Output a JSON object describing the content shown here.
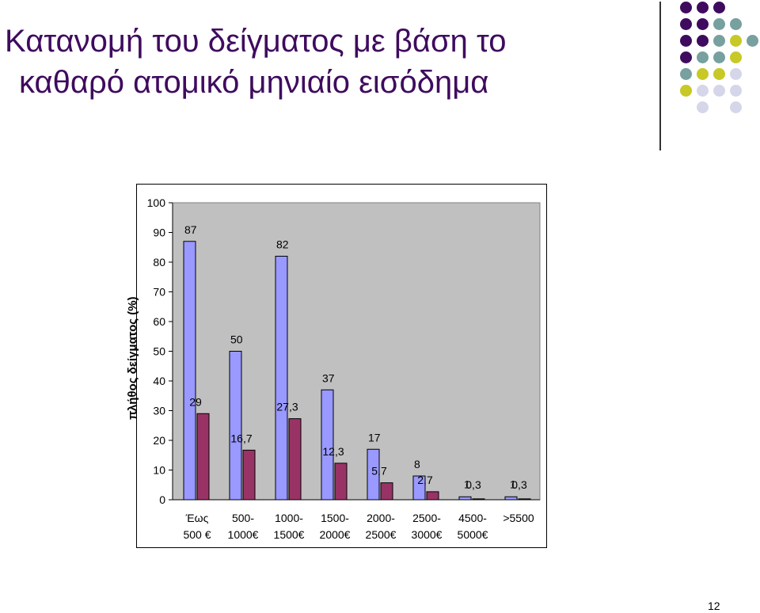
{
  "slide": {
    "title_line1": "Κατανομή του δείγματος με βάση το",
    "title_line2": "καθαρό ατομικό μηνιαίο εισόδημα",
    "page_number": "12"
  },
  "decoration": {
    "colors": [
      "#3f0b5e",
      "#77a09f",
      "#c8c826",
      "#d6d6ea"
    ],
    "grid": [
      [
        "#3f0b5e",
        "#3f0b5e",
        "#3f0b5e",
        null,
        null
      ],
      [
        "#3f0b5e",
        "#3f0b5e",
        "#77a09f",
        "#77a09f",
        null
      ],
      [
        "#3f0b5e",
        "#3f0b5e",
        "#77a09f",
        "#c8c826",
        "#77a09f"
      ],
      [
        "#3f0b5e",
        "#77a09f",
        "#77a09f",
        "#c8c826",
        null
      ],
      [
        "#77a09f",
        "#c8c826",
        "#c8c826",
        "#d6d6ea",
        null
      ],
      [
        "#c8c826",
        "#d6d6ea",
        "#d6d6ea",
        "#d6d6ea",
        null
      ],
      [
        null,
        "#d6d6ea",
        null,
        "#d6d6ea",
        null
      ]
    ]
  },
  "chart_data": {
    "type": "bar",
    "title": "",
    "xlabel": "",
    "ylabel": "πλήθος δείγματος (%)",
    "ylim": [
      0,
      100
    ],
    "yticks": [
      0,
      10,
      20,
      30,
      40,
      50,
      60,
      70,
      80,
      90,
      100
    ],
    "grid": false,
    "legend": "none",
    "categories": [
      [
        "Έως",
        "500 €"
      ],
      [
        "500-",
        "1000€"
      ],
      [
        "1000-",
        "1500€"
      ],
      [
        "1500-",
        "2000€"
      ],
      [
        "2000-",
        "2500€"
      ],
      [
        "2500-",
        "3000€"
      ],
      [
        "4500-",
        "5000€"
      ],
      [
        ">5500"
      ]
    ],
    "series": [
      {
        "color": "#9999ff",
        "values": [
          87,
          50,
          82,
          37,
          17,
          8,
          1,
          1
        ],
        "labels": [
          "87",
          "50",
          "82",
          "37",
          "17",
          "8",
          "1",
          "1"
        ]
      },
      {
        "color": "#993366",
        "values": [
          29,
          16.7,
          27.3,
          12.3,
          5.7,
          2.7,
          0.3,
          0.3
        ],
        "labels": [
          "29",
          "16,7",
          "27,3",
          "12,3",
          "5,7",
          "2,7",
          "0,3",
          "0,3"
        ]
      }
    ],
    "plot_background": "#c0c0c0"
  }
}
